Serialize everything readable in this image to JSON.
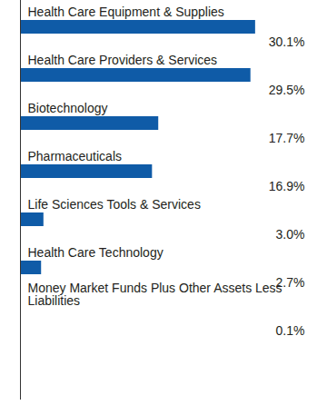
{
  "chart_data": {
    "type": "bar",
    "orientation": "horizontal",
    "categories": [
      "Health Care Equipment & Supplies",
      "Health Care Providers & Services",
      "Biotechnology",
      "Pharmaceuticals",
      "Life Sciences Tools & Services",
      "Health Care Technology",
      "Money Market Funds Plus Other Assets Less Liabilities"
    ],
    "values": [
      30.1,
      29.5,
      17.7,
      16.9,
      3.0,
      2.7,
      0.1
    ],
    "value_labels": [
      "30.1%",
      "29.5%",
      "17.7%",
      "16.9%",
      "3.0%",
      "2.7%",
      "0.1%"
    ],
    "data_labels": true,
    "tick_labels": false,
    "xlim": [
      0,
      35
    ],
    "color": "#0f5ba7"
  }
}
